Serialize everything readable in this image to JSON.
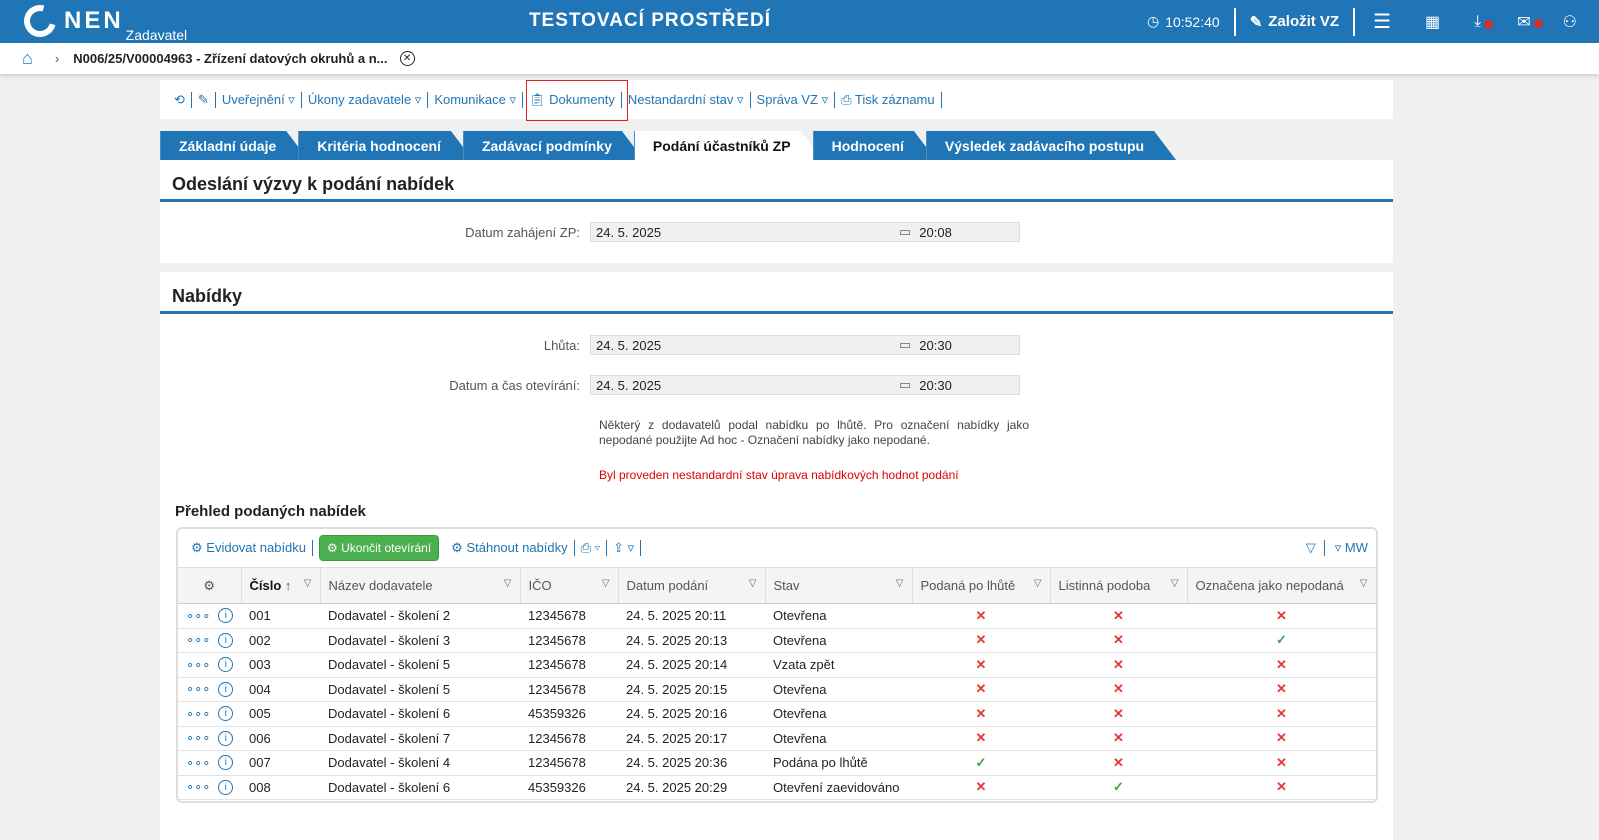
{
  "header": {
    "logo": "NEN",
    "logo_sub": "Zadavatel",
    "env_title": "TESTOVACÍ PROSTŘEDÍ",
    "time": "10:52:40",
    "create_label": "Založit VZ"
  },
  "breadcrumb": {
    "title": "N006/25/V00004963 - Zřízení datových okruhů a n..."
  },
  "toolbar": [
    "Uveřejnění ▿",
    "Úkony zadavatele ▿",
    "Komunikace ▿",
    "Dokumenty",
    "Nestandardní stav ▿",
    "Správa VZ ▿",
    "Tisk záznamu"
  ],
  "tabs": [
    "Základní údaje",
    "Kritéria hodnocení",
    "Zadávací podmínky",
    "Podání účastníků ZP",
    "Hodnocení",
    "Výsledek zadávacího postupu"
  ],
  "section1": {
    "title": "Odeslání výzvy k podání nabídek",
    "start_label": "Datum zahájení ZP:",
    "start_date": "24. 5. 2025",
    "start_time": "20:08"
  },
  "section2": {
    "title": "Nabídky",
    "deadline_label": "Lhůta:",
    "deadline_date": "24. 5. 2025",
    "deadline_time": "20:30",
    "opening_label": "Datum a čas otevírání:",
    "opening_date": "24. 5. 2025",
    "opening_time": "20:30",
    "note": "Některý z dodavatelů podal nabídku po lhůtě. Pro označení nabídky jako nepodané použijte Ad hoc - Označení nabídky jako nepodané.",
    "warning": "Byl proveden nestandardní stav úprava nabídkových hodnot podání"
  },
  "table": {
    "title": "Přehled podaných nabídek",
    "actions": {
      "register": "Evidovat nabídku",
      "finish": "Ukončit otevírání",
      "download": "Stáhnout nabídky",
      "mw": "MW"
    },
    "columns": [
      "Číslo",
      "Název dodavatele",
      "IČO",
      "Datum podání",
      "Stav",
      "Podaná po lhůtě",
      "Listinná podoba",
      "Označena jako nepodaná"
    ],
    "rows": [
      [
        "001",
        "Dodavatel - školení 2",
        "12345678",
        "24. 5. 2025 20:11",
        "Otevřena",
        false,
        false,
        false
      ],
      [
        "002",
        "Dodavatel - školení 3",
        "12345678",
        "24. 5. 2025 20:13",
        "Otevřena",
        false,
        false,
        true
      ],
      [
        "003",
        "Dodavatel - školení 5",
        "12345678",
        "24. 5. 2025 20:14",
        "Vzata zpět",
        false,
        false,
        false
      ],
      [
        "004",
        "Dodavatel - školení 5",
        "12345678",
        "24. 5. 2025 20:15",
        "Otevřena",
        false,
        false,
        false
      ],
      [
        "005",
        "Dodavatel - školení 6",
        "45359326",
        "24. 5. 2025 20:16",
        "Otevřena",
        false,
        false,
        false
      ],
      [
        "006",
        "Dodavatel - školení 7",
        "12345678",
        "24. 5. 2025 20:17",
        "Otevřena",
        false,
        false,
        false
      ],
      [
        "007",
        "Dodavatel - školení 4",
        "12345678",
        "24. 5. 2025 20:36",
        "Podána po lhůtě",
        true,
        false,
        false
      ],
      [
        "008",
        "Dodavatel - školení 6",
        "45359326",
        "24. 5. 2025 20:29",
        "Otevření zaevidováno",
        false,
        true,
        false
      ]
    ]
  },
  "colors": {
    "brand": "#1f75b5",
    "ok": "#43a047",
    "error": "#e53935"
  }
}
